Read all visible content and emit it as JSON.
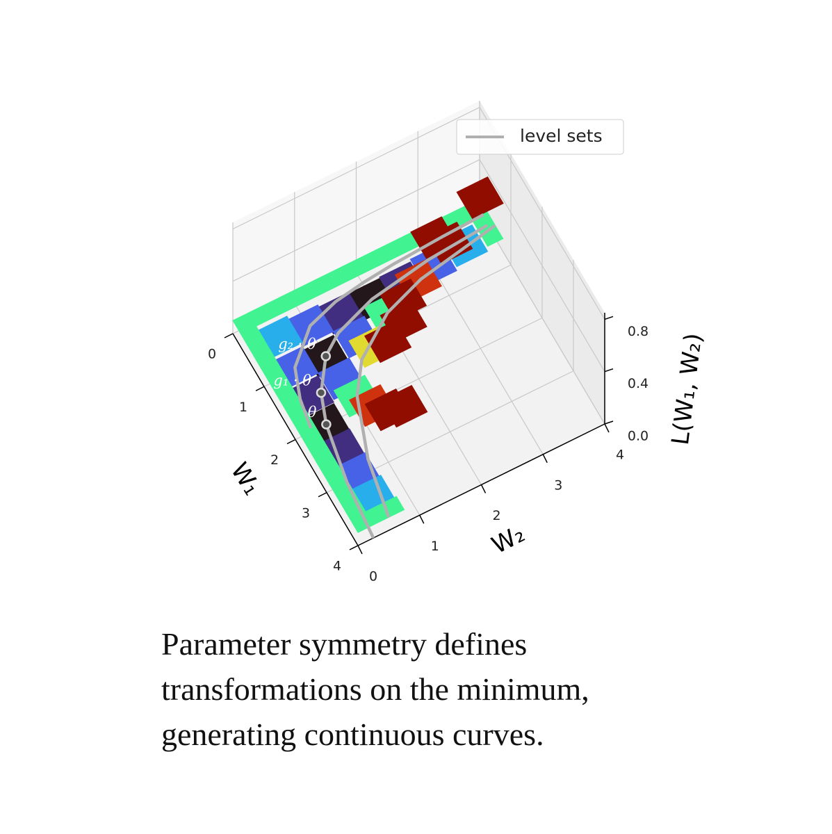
{
  "chart_data": {
    "type": "surface",
    "xlabel": "W₂",
    "ylabel": "W₁",
    "zlabel": "L(W₁, W₂)",
    "x": [
      0,
      0.5,
      1,
      1.5,
      2,
      2.5,
      3,
      3.5,
      4
    ],
    "y": [
      0,
      0.5,
      1,
      1.5,
      2,
      2.5,
      3,
      3.5,
      4
    ],
    "z": [
      [
        0.1,
        0.1,
        0.1,
        0.1,
        0.1,
        0.1,
        0.1,
        0.1,
        0.1
      ],
      [
        0.1,
        0.06,
        0.03,
        0.01,
        0,
        0.01,
        0.03,
        0.06,
        0.1
      ],
      [
        0.1,
        0.03,
        0,
        0.03,
        0.1,
        0.23,
        0.4,
        0.63,
        null
      ],
      [
        0.1,
        0.01,
        0.03,
        0.16,
        0.4,
        0.76,
        null,
        null,
        null
      ],
      [
        0.1,
        0,
        0.1,
        0.4,
        null,
        null,
        null,
        null,
        null
      ],
      [
        0.1,
        0.01,
        0.23,
        0.76,
        null,
        null,
        null,
        null,
        null
      ],
      [
        0.1,
        0.03,
        0.4,
        null,
        null,
        null,
        null,
        null,
        null
      ],
      [
        0.1,
        0.06,
        0.63,
        null,
        null,
        null,
        null,
        null,
        null
      ],
      [
        0.1,
        0.1,
        null,
        null,
        null,
        null,
        null,
        null,
        null
      ]
    ],
    "colormap": "turbo",
    "xlim": [
      0,
      4
    ],
    "ylim": [
      0,
      4
    ],
    "zlim": [
      0,
      0.85
    ],
    "xticks": [
      0,
      1,
      2,
      3,
      4
    ],
    "yticks": [
      0,
      1,
      2,
      3,
      4
    ],
    "zticks": [
      {
        "value": 0,
        "label": "0.0"
      },
      0.4,
      0.8
    ],
    "grid": true,
    "level_sets": {
      "name": "level sets",
      "color": "#b0b0b0",
      "legend": "upper right",
      "curves": [
        {
          "w1": [
            2,
            1.5,
            1,
            0.5,
            0.33,
            0.25,
            0.2,
            0.15,
            0.125
          ],
          "w2": [
            0.25,
            0.33,
            0.5,
            1,
            1.5,
            2,
            2.5,
            3.33,
            4
          ],
          "z": 0.03
        },
        {
          "w1": [
            4,
            3,
            2,
            1.5,
            1,
            0.75,
            0.5,
            0.33,
            0.25
          ],
          "w2": [
            0.25,
            0.33,
            0.5,
            0.67,
            1,
            1.33,
            2,
            3,
            4
          ],
          "z": 0
        },
        {
          "w1": [
            4,
            3,
            2,
            1.5,
            1,
            0.75,
            0.5
          ],
          "w2": [
            0.5,
            0.67,
            1,
            1.33,
            2,
            2.67,
            4
          ],
          "z": 0.1
        }
      ]
    },
    "points": [
      {
        "label": "θ",
        "w1": 2,
        "w2": 0.5,
        "z": 0
      },
      {
        "label": "g₁ · θ",
        "w1": 1.5,
        "w2": 0.67,
        "z": 0
      },
      {
        "label": "g₂ · θ",
        "w1": 1,
        "w2": 1,
        "z": 0
      }
    ]
  },
  "caption": [
    "Parameter symmetry defines",
    "transformations on the minimum,",
    "generating continuous curves."
  ]
}
